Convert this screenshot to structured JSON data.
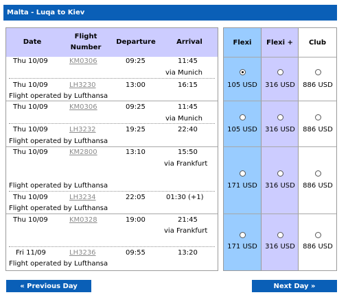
{
  "title": "Malta - Luqa to Kiev",
  "columns": {
    "date": "Date",
    "flight_number": "Flight Number",
    "departure": "Departure",
    "arrival": "Arrival"
  },
  "fare_classes": [
    "Flexi",
    "Flexi +",
    "Club"
  ],
  "options": [
    {
      "segments": [
        {
          "date": "Thu 10/09",
          "flight": "KM0306",
          "dep": "09:25",
          "arr": "11:45",
          "via": "via Munich",
          "operator": ""
        },
        {
          "date": "Thu 10/09",
          "flight": "LH3230",
          "dep": "13:00",
          "arr": "16:15",
          "via": "",
          "operator": "Flight operated by Lufthansa"
        }
      ],
      "prices": [
        "105 USD",
        "316 USD",
        "886 USD"
      ],
      "selected_fare": "Flexi"
    },
    {
      "segments": [
        {
          "date": "Thu 10/09",
          "flight": "KM0306",
          "dep": "09:25",
          "arr": "11:45",
          "via": "via Munich",
          "operator": ""
        },
        {
          "date": "Thu 10/09",
          "flight": "LH3232",
          "dep": "19:25",
          "arr": "22:40",
          "via": "",
          "operator": "Flight operated by Lufthansa"
        }
      ],
      "prices": [
        "105 USD",
        "316 USD",
        "886 USD"
      ],
      "selected_fare": ""
    },
    {
      "segments": [
        {
          "date": "Thu 10/09",
          "flight": "KM2800",
          "dep": "13:10",
          "arr": "15:50",
          "via": "via Frankfurt",
          "operator": "Flight operated by Lufthansa"
        },
        {
          "date": "Thu 10/09",
          "flight": "LH3234",
          "dep": "22:05",
          "arr": "01:30 (+1)",
          "via": "",
          "operator": "Flight operated by Lufthansa"
        }
      ],
      "prices": [
        "171 USD",
        "316 USD",
        "886 USD"
      ],
      "selected_fare": ""
    },
    {
      "segments": [
        {
          "date": "Thu 10/09",
          "flight": "KM0328",
          "dep": "19:00",
          "arr": "21:45",
          "via": "via Frankfurt",
          "operator": ""
        },
        {
          "date": "Fri 11/09",
          "flight": "LH3236",
          "dep": "09:55",
          "arr": "13:20",
          "via": "",
          "operator": "Flight operated by Lufthansa"
        }
      ],
      "prices": [
        "171 USD",
        "316 USD",
        "886 USD"
      ],
      "selected_fare": ""
    }
  ],
  "nav": {
    "previous": "« Previous Day",
    "next": "Next Day »"
  },
  "colors": {
    "accent": "#0a5fb7",
    "header_bg": "#ccccff",
    "flexi_bg": "#99ccff",
    "flexiplus_bg": "#ccccff"
  }
}
